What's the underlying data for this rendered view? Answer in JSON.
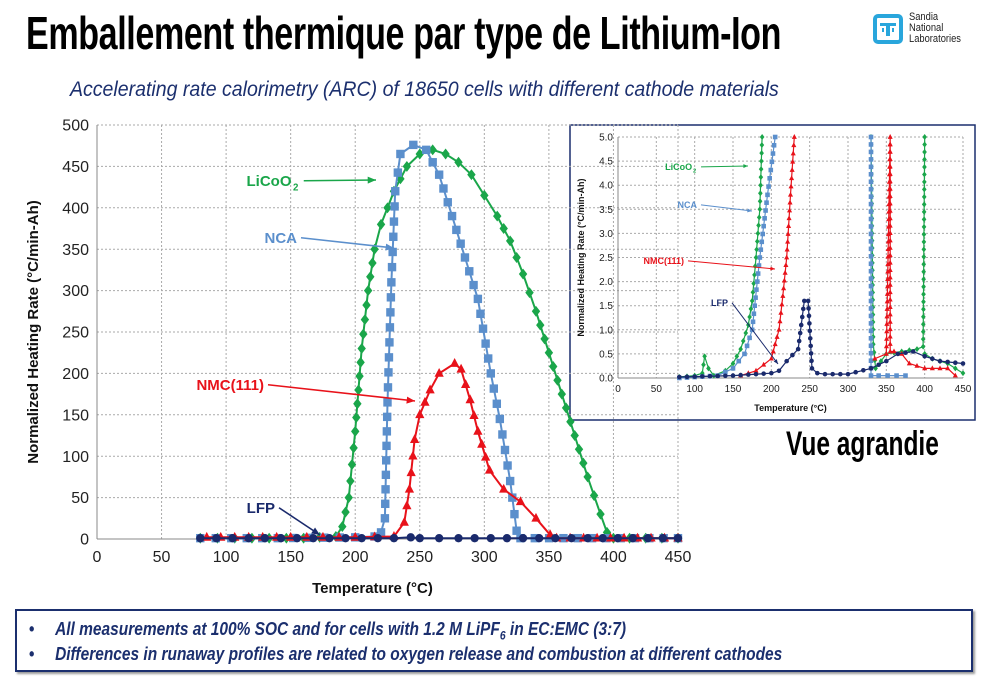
{
  "header": {
    "title": "Emballement thermique par type de Lithium-Ion",
    "subtitle": "Accelerating rate calorimetry (ARC) of 18650 cells with different cathode materials"
  },
  "logo": {
    "line1": "Sandia",
    "line2": "National",
    "line3": "Laboratories",
    "color": "#29a6dc"
  },
  "inset_caption": "Vue agrandie",
  "notes": [
    {
      "bullet": "•",
      "text": "All measurements at 100% SOC and for cells with 1.2 M LiPF",
      "sub": "6",
      "after": " in EC:EMC (3:7)"
    },
    {
      "bullet": "•",
      "text": "Differences in runaway profiles are related to oxygen release and combustion at different cathodes"
    }
  ],
  "chart_data": [
    {
      "type": "line",
      "xlabel": "Temperature (°C)",
      "ylabel": "Normalized Heating Rate (°C/min-Ah)",
      "xlim": [
        0,
        450
      ],
      "ylim": [
        0,
        500
      ],
      "xticks": [
        0,
        50,
        100,
        150,
        200,
        250,
        300,
        350,
        400,
        450
      ],
      "yticks": [
        0,
        50,
        100,
        150,
        200,
        250,
        300,
        350,
        400,
        450,
        500
      ],
      "grid": true,
      "series": [
        {
          "name": "LiCoO2",
          "label": "LiCoO",
          "label_sub": "2",
          "color": "#1aa64a",
          "marker": "diamond",
          "x": [
            80,
            120,
            160,
            185,
            190,
            195,
            200,
            205,
            210,
            215,
            220,
            230,
            240,
            250,
            260,
            270,
            280,
            290,
            300,
            310,
            320,
            330,
            340,
            350,
            360,
            370,
            380,
            390,
            395,
            400,
            450
          ],
          "y": [
            1,
            1,
            1,
            3,
            15,
            50,
            130,
            230,
            300,
            350,
            380,
            420,
            450,
            465,
            470,
            465,
            455,
            440,
            415,
            390,
            360,
            320,
            275,
            225,
            175,
            125,
            75,
            30,
            8,
            1,
            1
          ]
        },
        {
          "name": "NCA",
          "label": "NCA",
          "color": "#5b8fcc",
          "marker": "square",
          "x": [
            80,
            140,
            200,
            215,
            220,
            223,
            225,
            228,
            231,
            235,
            245,
            255,
            265,
            275,
            285,
            295,
            305,
            312,
            320,
            325,
            328,
            450
          ],
          "y": [
            1,
            1,
            2,
            3,
            8,
            25,
            165,
            310,
            420,
            465,
            476,
            470,
            440,
            390,
            340,
            290,
            200,
            145,
            70,
            10,
            1,
            1
          ]
        },
        {
          "name": "NMC(111)",
          "label": "NMC(111)",
          "color": "#e8121a",
          "marker": "triangle",
          "x": [
            85,
            150,
            200,
            230,
            238,
            242,
            246,
            250,
            258,
            265,
            277,
            282,
            289,
            295,
            304,
            315,
            328,
            340,
            351,
            356,
            450
          ],
          "y": [
            2,
            2,
            2,
            3,
            20,
            60,
            120,
            150,
            180,
            200,
            212,
            205,
            168,
            130,
            83,
            60,
            45,
            25,
            5,
            1,
            1
          ]
        },
        {
          "name": "LFP",
          "label": "LFP",
          "color": "#1a2a6c",
          "marker": "circle",
          "x": [
            80,
            130,
            180,
            230,
            243,
            250,
            280,
            330,
            380,
            450
          ],
          "y": [
            1,
            1,
            1,
            1,
            2,
            1,
            1,
            1,
            1,
            1
          ]
        }
      ]
    },
    {
      "type": "line",
      "caption": "Vue agrandie",
      "xlabel": "Temperature (°C)",
      "ylabel": "Normalized Heating Rate (°C/min-Ah)",
      "xlim": [
        0,
        450
      ],
      "ylim": [
        0,
        5
      ],
      "xticks": [
        0,
        50,
        100,
        150,
        200,
        250,
        300,
        350,
        400,
        450
      ],
      "yticks": [
        "0.0",
        "0.5",
        "1.0",
        "1.5",
        "2.0",
        "2.5",
        "3.0",
        "3.5",
        "4.0",
        "4.5",
        "5.0"
      ],
      "grid": true,
      "series": [
        {
          "name": "LiCoO2",
          "label": "LiCoO",
          "label_sub": "2",
          "color": "#1aa64a",
          "marker": "diamond",
          "x": [
            80,
            100,
            110,
            113,
            118,
            125,
            140,
            150,
            160,
            170,
            175,
            180,
            185,
            188,
            null,
            330,
            333,
            336,
            350,
            370,
            390,
            398,
            400,
            null,
            400,
            410,
            430,
            450
          ],
          "y": [
            0.02,
            0.05,
            0.1,
            0.45,
            0.2,
            0.05,
            0.15,
            0.3,
            0.6,
            1.1,
            1.6,
            2.5,
            3.5,
            5,
            null,
            5,
            0.7,
            0.2,
            0.5,
            0.55,
            0.6,
            0.65,
            5,
            null,
            0.5,
            0.4,
            0.3,
            0.1
          ]
        },
        {
          "name": "NCA",
          "label": "NCA",
          "color": "#5b8fcc",
          "marker": "square",
          "x": [
            80,
            130,
            150,
            165,
            175,
            185,
            195,
            205,
            null,
            330,
            330,
            340,
            375
          ],
          "y": [
            0,
            0.05,
            0.2,
            0.5,
            1,
            2.5,
            3.8,
            5,
            null,
            5,
            0.05,
            0.05,
            0.05
          ]
        },
        {
          "name": "NMC(111)",
          "label": "NMC(111)",
          "color": "#e8121a",
          "marker": "triangle",
          "x": [
            160,
            180,
            200,
            210,
            215,
            220,
            225,
            230,
            null,
            335,
            350,
            355,
            355,
            360,
            370,
            380,
            400,
            430,
            440
          ],
          "y": [
            0.05,
            0.15,
            0.4,
            1.0,
            1.7,
            2.5,
            3.8,
            5,
            null,
            0.4,
            0.5,
            5,
            0.55,
            0.55,
            0.5,
            0.3,
            0.2,
            0.2,
            0.05
          ]
        },
        {
          "name": "LFP",
          "label": "LFP",
          "color": "#1a2a6c",
          "marker": "circle",
          "x": [
            80,
            150,
            200,
            210,
            220,
            235,
            243,
            248,
            253,
            260,
            270,
            300,
            330,
            350,
            365,
            385,
            400,
            420,
            450
          ],
          "y": [
            0.02,
            0.05,
            0.1,
            0.15,
            0.35,
            0.6,
            1.6,
            1.6,
            0.2,
            0.1,
            0.08,
            0.08,
            0.2,
            0.35,
            0.5,
            0.55,
            0.45,
            0.35,
            0.3
          ]
        }
      ]
    }
  ]
}
